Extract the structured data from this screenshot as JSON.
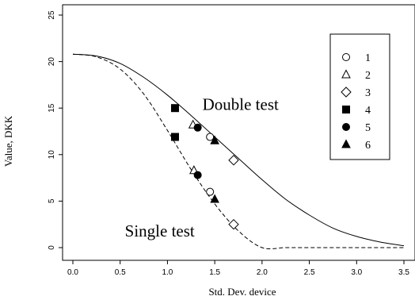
{
  "chart_data": {
    "type": "line",
    "title": "",
    "xlabel": "Std. Dev. device",
    "ylabel": "Value, DKK",
    "xlim": [
      0,
      3.5
    ],
    "ylim": [
      0,
      25
    ],
    "x_ticks": [
      "0.0",
      "0.5",
      "1.0",
      "1.5",
      "2.0",
      "2.5",
      "3.0",
      "3.5"
    ],
    "y_ticks": [
      "0",
      "5",
      "10",
      "15",
      "20",
      "25"
    ],
    "y_tick_rotation": "vertical",
    "grid": false,
    "legend_position": "top-right",
    "series": [
      {
        "name": "Double test",
        "style": "solid",
        "x": [
          0.0,
          0.25,
          0.5,
          0.75,
          1.0,
          1.25,
          1.5,
          1.75,
          2.0,
          2.25,
          2.5,
          2.75,
          3.0,
          3.25,
          3.5
        ],
        "y": [
          20.8,
          20.6,
          19.8,
          18.3,
          16.4,
          14.2,
          11.9,
          9.6,
          7.3,
          5.2,
          3.5,
          2.1,
          1.2,
          0.6,
          0.2
        ]
      },
      {
        "name": "Single test",
        "style": "dashed",
        "x": [
          0.0,
          0.25,
          0.5,
          0.75,
          1.0,
          1.25,
          1.5,
          1.75,
          2.0,
          2.25,
          2.5,
          2.75,
          3.0,
          3.25,
          3.5
        ],
        "y": [
          20.8,
          20.5,
          19.2,
          16.5,
          12.6,
          8.4,
          4.7,
          1.8,
          0.0,
          0.0,
          0.0,
          0.0,
          0.0,
          0.0,
          0.0
        ]
      }
    ],
    "points": [
      {
        "label": "4",
        "marker": "filled-square",
        "x": 1.08,
        "y": 15.0
      },
      {
        "label": "2",
        "marker": "open-triangle",
        "x": 1.27,
        "y": 13.2
      },
      {
        "label": "5",
        "marker": "filled-circle",
        "x": 1.32,
        "y": 12.9
      },
      {
        "label": "1",
        "marker": "open-circle",
        "x": 1.45,
        "y": 11.9
      },
      {
        "label": "6",
        "marker": "filled-triangle",
        "x": 1.5,
        "y": 11.5
      },
      {
        "label": "3",
        "marker": "open-diamond",
        "x": 1.7,
        "y": 9.4
      },
      {
        "label": "4",
        "marker": "filled-square",
        "x": 1.08,
        "y": 11.9
      },
      {
        "label": "2",
        "marker": "open-triangle",
        "x": 1.28,
        "y": 8.3
      },
      {
        "label": "5",
        "marker": "filled-circle",
        "x": 1.32,
        "y": 7.8
      },
      {
        "label": "1",
        "marker": "open-circle",
        "x": 1.45,
        "y": 6.0
      },
      {
        "label": "6",
        "marker": "filled-triangle",
        "x": 1.5,
        "y": 5.2
      },
      {
        "label": "3",
        "marker": "open-diamond",
        "x": 1.7,
        "y": 2.5
      }
    ],
    "annotations": [
      {
        "text": "Double test",
        "x": 1.37,
        "y": 14.8
      },
      {
        "text": "Single test",
        "x": 0.55,
        "y": 1.2
      }
    ],
    "legend": [
      {
        "label": "1",
        "marker": "open-circle"
      },
      {
        "label": "2",
        "marker": "open-triangle"
      },
      {
        "label": "3",
        "marker": "open-diamond"
      },
      {
        "label": "4",
        "marker": "filled-square"
      },
      {
        "label": "5",
        "marker": "filled-circle"
      },
      {
        "label": "6",
        "marker": "filled-triangle"
      }
    ]
  }
}
